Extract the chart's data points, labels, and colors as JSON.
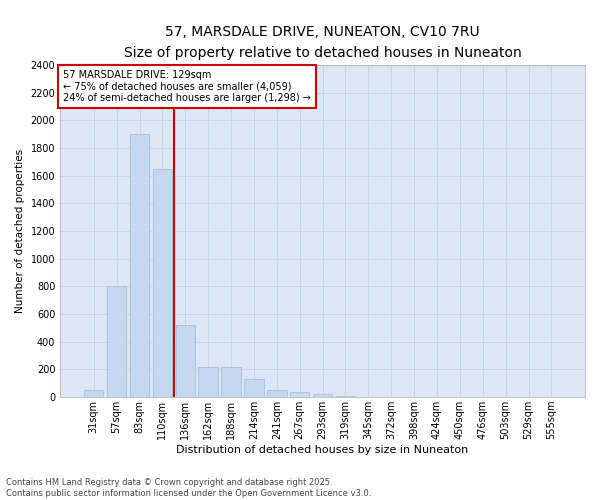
{
  "title_line1": "57, MARSDALE DRIVE, NUNEATON, CV10 7RU",
  "title_line2": "Size of property relative to detached houses in Nuneaton",
  "xlabel": "Distribution of detached houses by size in Nuneaton",
  "ylabel": "Number of detached properties",
  "categories": [
    "31sqm",
    "57sqm",
    "83sqm",
    "110sqm",
    "136sqm",
    "162sqm",
    "188sqm",
    "214sqm",
    "241sqm",
    "267sqm",
    "293sqm",
    "319sqm",
    "345sqm",
    "372sqm",
    "398sqm",
    "424sqm",
    "450sqm",
    "476sqm",
    "503sqm",
    "529sqm",
    "555sqm"
  ],
  "values": [
    50,
    800,
    1900,
    1650,
    520,
    220,
    220,
    130,
    55,
    35,
    20,
    5,
    0,
    0,
    0,
    0,
    0,
    0,
    0,
    0,
    0
  ],
  "bar_color": "#c5d8f0",
  "bar_edge_color": "#a0b8d8",
  "annotation_title": "57 MARSDALE DRIVE: 129sqm",
  "annotation_line2": "← 75% of detached houses are smaller (4,059)",
  "annotation_line3": "24% of semi-detached houses are larger (1,298) →",
  "annotation_box_color": "#ffffff",
  "annotation_box_edge_color": "#cc0000",
  "red_line_color": "#cc0000",
  "ylim": [
    0,
    2400
  ],
  "yticks": [
    0,
    200,
    400,
    600,
    800,
    1000,
    1200,
    1400,
    1600,
    1800,
    2000,
    2200,
    2400
  ],
  "grid_color": "#c8d4e8",
  "background_color": "#dce6f5",
  "fig_background_color": "#ffffff",
  "footer_line1": "Contains HM Land Registry data © Crown copyright and database right 2025.",
  "footer_line2": "Contains public sector information licensed under the Open Government Licence v3.0.",
  "title_fontsize": 10,
  "subtitle_fontsize": 8.5,
  "xlabel_fontsize": 8,
  "ylabel_fontsize": 7.5,
  "tick_fontsize": 7,
  "annotation_fontsize": 7,
  "footer_fontsize": 6
}
